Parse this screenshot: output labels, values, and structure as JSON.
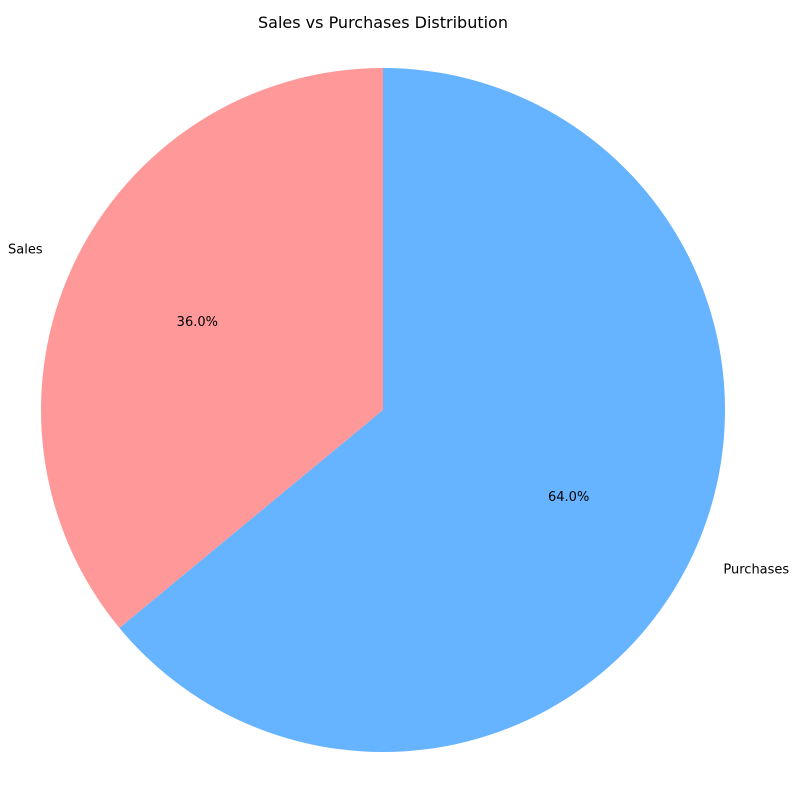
{
  "chart_data": {
    "type": "pie",
    "title": "Sales vs Purchases Distribution",
    "slices": [
      {
        "label": "Sales",
        "value": 36.0,
        "percent_label": "36.0%",
        "color": "#ff9999"
      },
      {
        "label": "Purchases",
        "value": 64.0,
        "percent_label": "64.0%",
        "color": "#66b3ff"
      }
    ],
    "start_angle_deg": 90,
    "direction": "counterclockwise"
  }
}
